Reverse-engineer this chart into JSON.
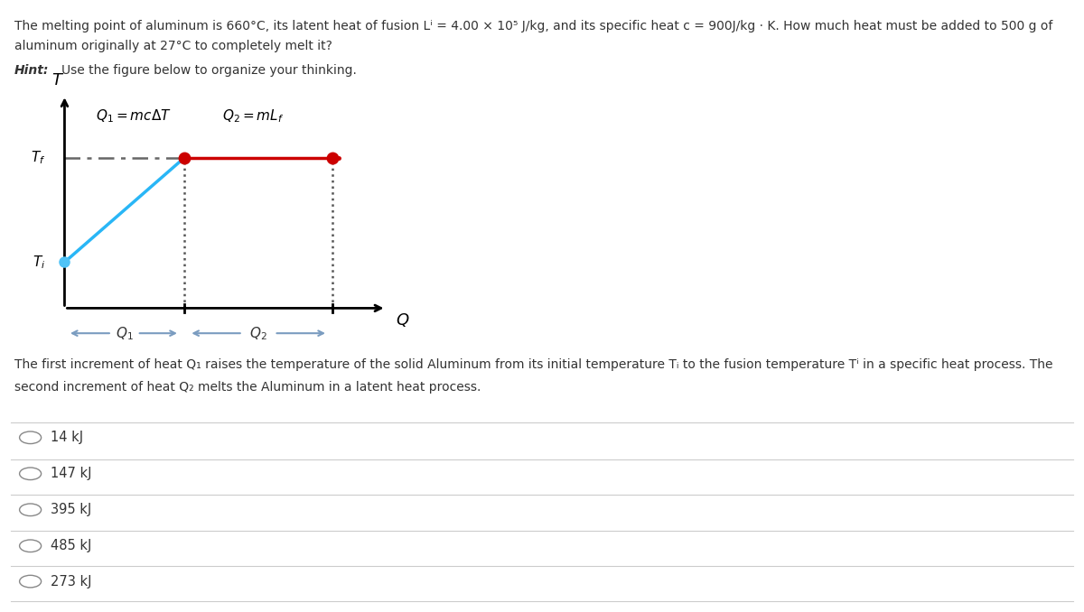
{
  "title_line1": "The melting point of aluminum is 660°C, its latent heat of fusion Lⁱ = 4.00 × 10⁵ J/kg, and its specific heat c = 900J/kg · K. How much heat must be added to 500 g of",
  "title_line2": "aluminum originally at 27°C to completely melt it?",
  "hint_bold": "Hint:",
  "hint_rest": " Use the figure below to organize your thinking.",
  "explanation_line1": "The first increment of heat Q₁ raises the temperature of the solid Aluminum from its initial temperature Tᵢ to the fusion temperature Tⁱ in a specific heat process. The",
  "explanation_line2": "second increment of heat Q₂ melts the Aluminum in a latent heat process.",
  "choices": [
    "14 kJ",
    "147 kJ",
    "395 kJ",
    "485 kJ",
    "273 kJ"
  ],
  "q1_label": "$Q_1 = mc\\Delta T$",
  "q2_label": "$Q_2 = mL_f$",
  "Ti_label": "$T_i$",
  "Tf_label": "$T_f$",
  "Q_label": "$Q$",
  "T_label": "$T$",
  "Q1_arrow_label": "$Q_1$",
  "Q2_arrow_label": "$Q_2$",
  "blue_dot_color": "#4FC3F7",
  "blue_line_color": "#29B6F6",
  "red_line_color": "#CC0000",
  "red_dot_color": "#CC0000",
  "dash_dot_color": "#666666",
  "dotted_color": "#555555",
  "arrow_color": "#7A9CC0",
  "axis_color": "#000000",
  "bg_color": "#ffffff",
  "text_color": "#333333",
  "separator_color": "#cccccc",
  "circle_color": "#888888"
}
